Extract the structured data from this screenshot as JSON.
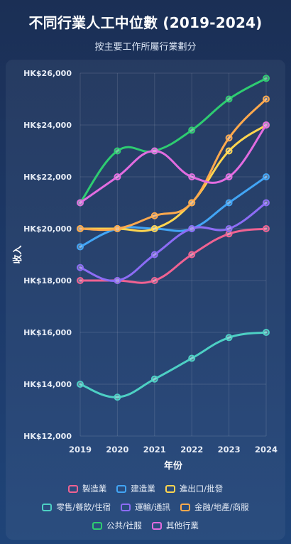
{
  "header": {
    "title": "不同行業人工中位數 (2019-2024)",
    "subtitle": "按主要工作所屬行業劃分"
  },
  "chart_data": {
    "type": "line",
    "xlabel": "年份",
    "ylabel": "收入",
    "x": [
      "2019",
      "2020",
      "2021",
      "2022",
      "2023",
      "2024"
    ],
    "ylim": [
      12000,
      26000
    ],
    "yticks": [
      12000,
      14000,
      16000,
      18000,
      20000,
      22000,
      24000,
      26000
    ],
    "ytick_labels": [
      "HK$12,000",
      "HK$14,000",
      "HK$16,000",
      "HK$18,000",
      "HK$20,000",
      "HK$22,000",
      "HK$24,000",
      "HK$26,000"
    ],
    "grid": true,
    "legend_position": "bottom",
    "series": [
      {
        "name": "製造業",
        "color": "#f06292",
        "values": [
          18000,
          18000,
          18000,
          19000,
          19800,
          20000
        ]
      },
      {
        "name": "建造業",
        "color": "#42a5f5",
        "values": [
          19300,
          20000,
          20000,
          20000,
          21000,
          22000
        ]
      },
      {
        "name": "進出口/批發",
        "color": "#ffd54f",
        "values": [
          20000,
          20000,
          20000,
          21000,
          23000,
          24000
        ]
      },
      {
        "name": "零售/餐飲/住宿",
        "color": "#4dd0c4",
        "values": [
          14000,
          13500,
          14200,
          15000,
          15800,
          16000
        ]
      },
      {
        "name": "運輸/通訊",
        "color": "#8c6cf5",
        "values": [
          18500,
          18000,
          19000,
          20000,
          20000,
          21000
        ]
      },
      {
        "name": "金融/地產/商服",
        "color": "#ffa94d",
        "values": [
          20000,
          20000,
          20500,
          21000,
          23500,
          25000
        ]
      },
      {
        "name": "公共/社服",
        "color": "#2ecc71",
        "values": [
          21000,
          23000,
          23000,
          23800,
          25000,
          25800
        ]
      },
      {
        "name": "其他行業",
        "color": "#e26ce0",
        "values": [
          21000,
          22000,
          23000,
          22000,
          22000,
          24000
        ]
      }
    ]
  }
}
